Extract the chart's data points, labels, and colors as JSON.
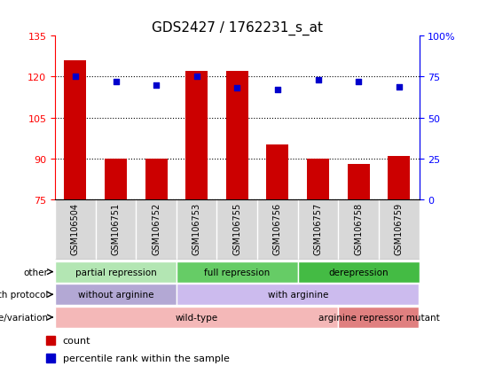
{
  "title": "GDS2427 / 1762231_s_at",
  "samples": [
    "GSM106504",
    "GSM106751",
    "GSM106752",
    "GSM106753",
    "GSM106755",
    "GSM106756",
    "GSM106757",
    "GSM106758",
    "GSM106759"
  ],
  "bar_values": [
    126,
    90,
    90,
    122,
    122,
    95,
    90,
    88,
    91
  ],
  "percentile_values": [
    75,
    72,
    70,
    75,
    68,
    67,
    73,
    72,
    69
  ],
  "ylim_left": [
    75,
    135
  ],
  "yticks_left": [
    75,
    90,
    105,
    120,
    135
  ],
  "ylim_right": [
    0,
    100
  ],
  "yticks_right": [
    0,
    25,
    50,
    75,
    100
  ],
  "bar_color": "#cc0000",
  "dot_color": "#0000cc",
  "annotation_rows": [
    {
      "label": "other",
      "segments": [
        {
          "text": "partial repression",
          "span": [
            0,
            3
          ],
          "color": "#b3e6b3"
        },
        {
          "text": "full repression",
          "span": [
            3,
            6
          ],
          "color": "#66cc66"
        },
        {
          "text": "derepression",
          "span": [
            6,
            9
          ],
          "color": "#44bb44"
        }
      ]
    },
    {
      "label": "growth protocol",
      "segments": [
        {
          "text": "without arginine",
          "span": [
            0,
            3
          ],
          "color": "#b3a8d4"
        },
        {
          "text": "with arginine",
          "span": [
            3,
            9
          ],
          "color": "#ccbbee"
        }
      ]
    },
    {
      "label": "genotype/variation",
      "segments": [
        {
          "text": "wild-type",
          "span": [
            0,
            7
          ],
          "color": "#f4b8b8"
        },
        {
          "text": "arginine repressor mutant",
          "span": [
            7,
            9
          ],
          "color": "#e08080"
        }
      ]
    }
  ],
  "legend": [
    {
      "color": "#cc0000",
      "label": "count"
    },
    {
      "color": "#0000cc",
      "label": "percentile rank within the sample"
    }
  ],
  "fig_width": 5.4,
  "fig_height": 4.14,
  "dpi": 100
}
